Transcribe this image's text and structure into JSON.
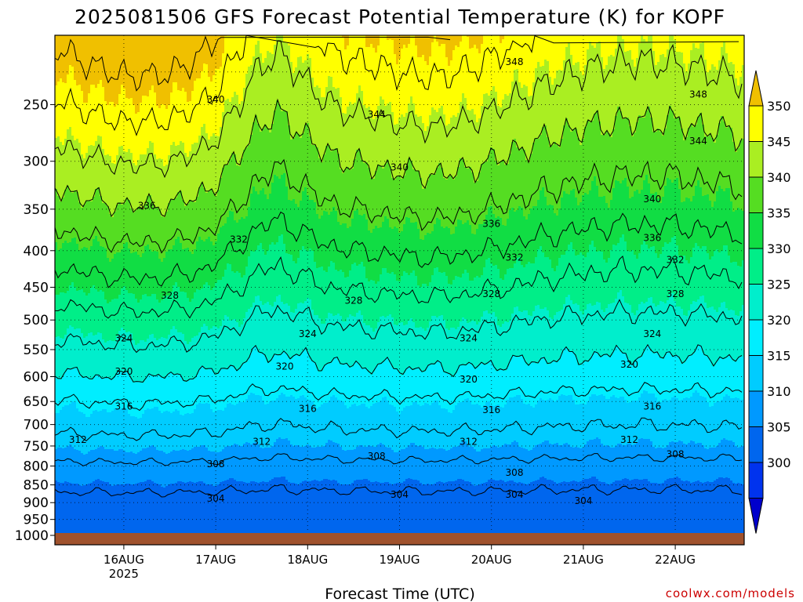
{
  "chart_data": {
    "type": "heatmap",
    "title": "2025081506 GFS Forecast Potential Temperature (K) for KOPF",
    "xlabel": "Forecast Time (UTC)",
    "ylabel": "",
    "credit": "coolwx.com/models",
    "y_scale": "log",
    "ylim": [
      1000,
      200
    ],
    "y_ticks": [
      "250",
      "300",
      "350",
      "400",
      "450",
      "500",
      "550",
      "600",
      "650",
      "700",
      "750",
      "800",
      "850",
      "900",
      "950",
      "1000"
    ],
    "x_start": "2025-08-15T06:00Z",
    "x_end": "2025-08-22T18:00Z",
    "x_ticks": [
      {
        "label": "16AUG",
        "sub": "2025",
        "t": "2025-08-16T00:00Z"
      },
      {
        "label": "17AUG",
        "sub": "",
        "t": "2025-08-17T00:00Z"
      },
      {
        "label": "18AUG",
        "sub": "",
        "t": "2025-08-18T00:00Z"
      },
      {
        "label": "19AUG",
        "sub": "",
        "t": "2025-08-19T00:00Z"
      },
      {
        "label": "20AUG",
        "sub": "",
        "t": "2025-08-20T00:00Z"
      },
      {
        "label": "21AUG",
        "sub": "",
        "t": "2025-08-21T00:00Z"
      },
      {
        "label": "22AUG",
        "sub": "",
        "t": "2025-08-22T00:00Z"
      }
    ],
    "grid": true,
    "colorbar": {
      "labels": [
        "350",
        "345",
        "340",
        "335",
        "330",
        "325",
        "320",
        "315",
        "310",
        "305",
        "300"
      ],
      "colors": [
        "#f0c000",
        "#ffff00",
        "#aaee22",
        "#55dd22",
        "#11dd44",
        "#00ee88",
        "#00eecc",
        "#00eeff",
        "#00ccff",
        "#0099ff",
        "#0066ee",
        "#0033ee",
        "#0000cc"
      ],
      "extend": "both"
    },
    "contour_interval_k": 4,
    "contour_labels": [
      {
        "value": "348",
        "t": "2025-08-20T06:00Z",
        "p": 218
      },
      {
        "value": "348",
        "t": "2025-08-22T06:00Z",
        "p": 242
      },
      {
        "value": "344",
        "t": "2025-08-18T18:00Z",
        "p": 258
      },
      {
        "value": "344",
        "t": "2025-08-22T06:00Z",
        "p": 281
      },
      {
        "value": "340",
        "t": "2025-08-17T00:00Z",
        "p": 246
      },
      {
        "value": "340",
        "t": "2025-08-19T00:00Z",
        "p": 306
      },
      {
        "value": "340",
        "t": "2025-08-21T18:00Z",
        "p": 339
      },
      {
        "value": "336",
        "t": "2025-08-16Т06:00Z",
        "p": 346
      },
      {
        "value": "336",
        "t": "2025-08-20T00:00Z",
        "p": 367
      },
      {
        "value": "336",
        "t": "2025-08-21T18:00Z",
        "p": 384
      },
      {
        "value": "332",
        "t": "2025-08-17T06:00Z",
        "p": 386
      },
      {
        "value": "332",
        "t": "2025-08-20T06:00Z",
        "p": 409
      },
      {
        "value": "332",
        "t": "2025-08-22T00:00Z",
        "p": 412
      },
      {
        "value": "328",
        "t": "2025-08-16T12:00Z",
        "p": 462
      },
      {
        "value": "328",
        "t": "2025-08-18T12:00Z",
        "p": 470
      },
      {
        "value": "328",
        "t": "2025-08-20T00:00Z",
        "p": 460
      },
      {
        "value": "328",
        "t": "2025-08-22T00:00Z",
        "p": 460
      },
      {
        "value": "324",
        "t": "2025-08-16T00:00Z",
        "p": 530
      },
      {
        "value": "324",
        "t": "2025-08-18T00:00Z",
        "p": 523
      },
      {
        "value": "324",
        "t": "2025-08-19T18:00Z",
        "p": 530
      },
      {
        "value": "324",
        "t": "2025-08-21T18:00Z",
        "p": 523
      },
      {
        "value": "320",
        "t": "2025-08-16T00:00Z",
        "p": 590
      },
      {
        "value": "320",
        "t": "2025-08-17T18:00Z",
        "p": 581
      },
      {
        "value": "320",
        "t": "2025-08-19T18:00Z",
        "p": 605
      },
      {
        "value": "320",
        "t": "2025-08-21T12:00Z",
        "p": 577
      },
      {
        "value": "316",
        "t": "2025-08-16T00:00Z",
        "p": 660
      },
      {
        "value": "316",
        "t": "2025-08-18T00:00Z",
        "p": 665
      },
      {
        "value": "316",
        "t": "2025-08-20T00:00Z",
        "p": 668
      },
      {
        "value": "316",
        "t": "2025-08-21T18:00Z",
        "p": 660
      },
      {
        "value": "312",
        "t": "2025-08-15T12:00Z",
        "p": 735
      },
      {
        "value": "312",
        "t": "2025-08-17T12:00Z",
        "p": 740
      },
      {
        "value": "312",
        "t": "2025-08-19T18:00Z",
        "p": 740
      },
      {
        "value": "312",
        "t": "2025-08-21T12:00Z",
        "p": 735
      },
      {
        "value": "308",
        "t": "2025-08-17T00:00Z",
        "p": 795
      },
      {
        "value": "308",
        "t": "2025-08-18T18:00Z",
        "p": 775
      },
      {
        "value": "308",
        "t": "2025-08-20T06:00Z",
        "p": 817
      },
      {
        "value": "308",
        "t": "2025-08-22T00:00Z",
        "p": 770
      },
      {
        "value": "304",
        "t": "2025-08-17T00:00Z",
        "p": 888
      },
      {
        "value": "304",
        "t": "2025-08-19T00:00Z",
        "p": 877
      },
      {
        "value": "304",
        "t": "2025-08-20T06:00Z",
        "p": 877
      },
      {
        "value": "304",
        "t": "2025-08-21T00:00Z",
        "p": 895
      }
    ]
  }
}
